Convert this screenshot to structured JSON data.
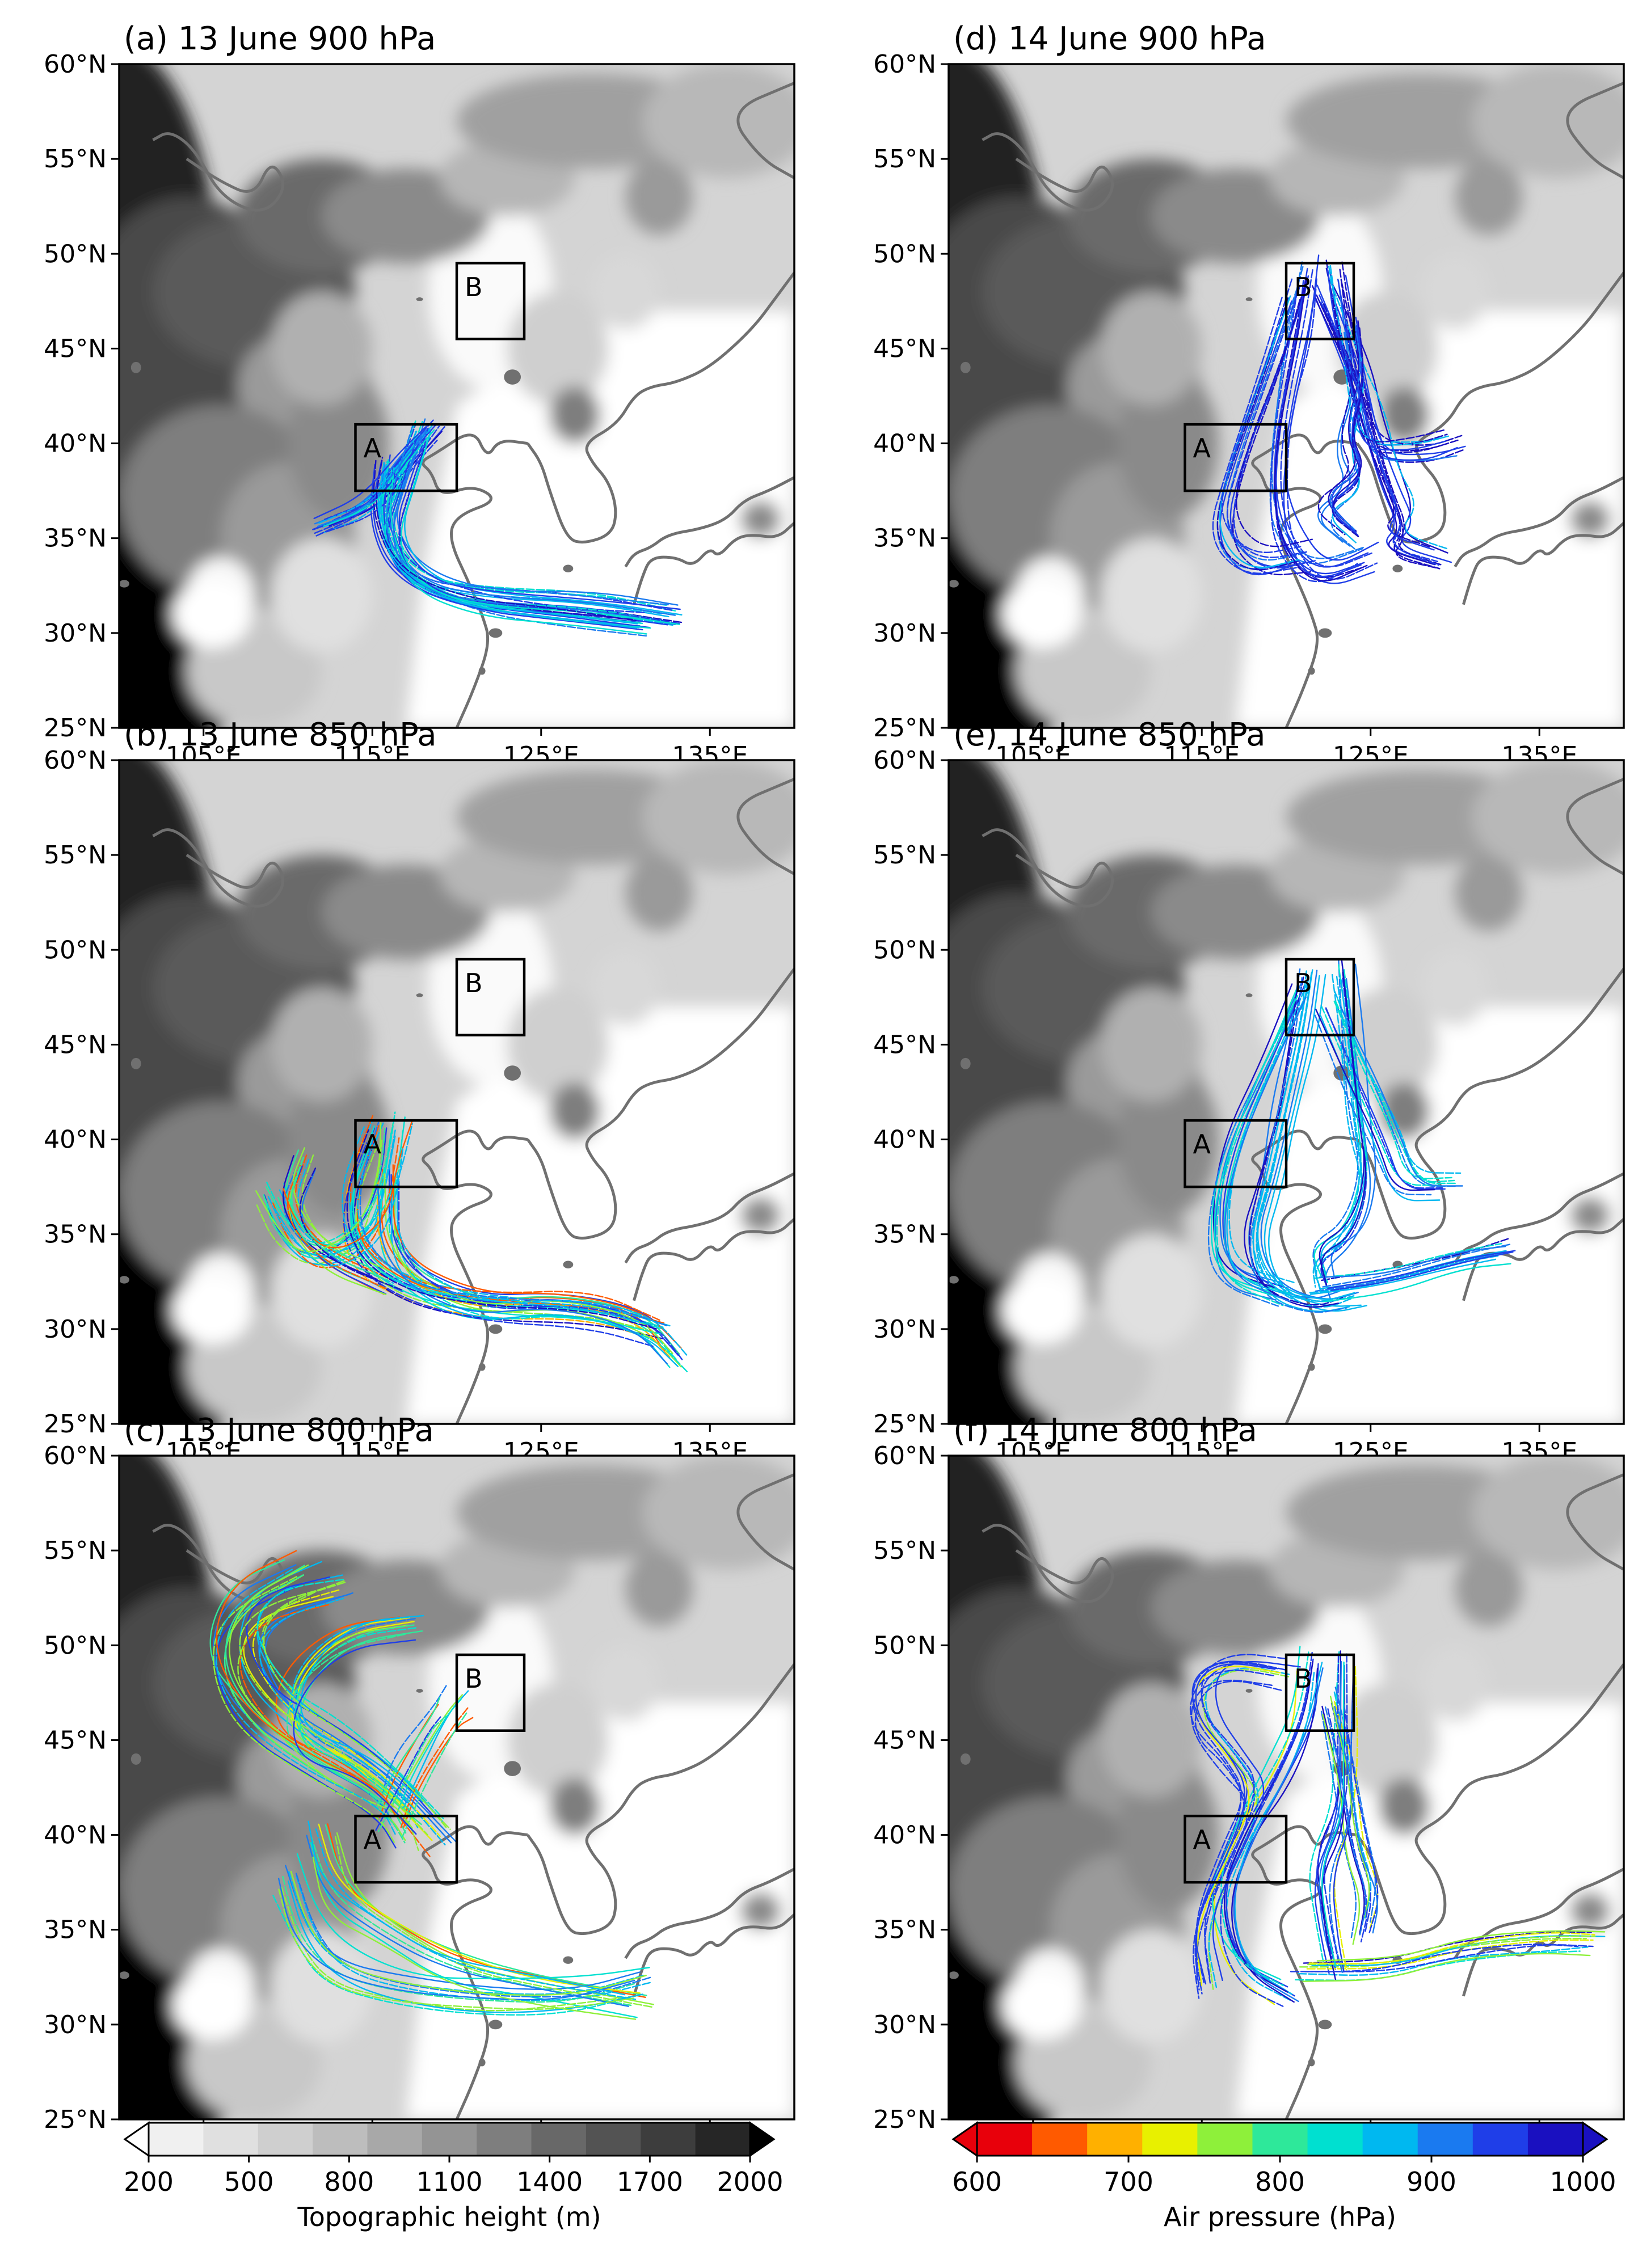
{
  "panels": [
    {
      "id": "a",
      "title": "(a) 13 June 900 hPa",
      "pattern": "13-900"
    },
    {
      "id": "b",
      "title": "(b) 13 June 850 hPa",
      "pattern": "13-850"
    },
    {
      "id": "c",
      "title": "(c) 13 June 800 hPa",
      "pattern": "13-800"
    },
    {
      "id": "d",
      "title": "(d) 14 June 900 hPa",
      "pattern": "14-900"
    },
    {
      "id": "e",
      "title": "(e) 14 June 850 hPa",
      "pattern": "14-850"
    },
    {
      "id": "f",
      "title": "(f) 14 June 800 hPa",
      "pattern": "14-800"
    }
  ],
  "map_extent": {
    "lon": [
      100,
      140
    ],
    "lat": [
      25,
      60
    ]
  },
  "lat_ticks": [
    "25°N",
    "30°N",
    "35°N",
    "40°N",
    "45°N",
    "50°N",
    "55°N",
    "60°N"
  ],
  "lon_ticks": [
    "105°E",
    "115°E",
    "125°E",
    "135°E"
  ],
  "boxes": [
    {
      "label": "A",
      "lon": [
        114,
        120
      ],
      "lat": [
        37.5,
        41
      ]
    },
    {
      "label": "B",
      "lon": [
        120,
        124
      ],
      "lat": [
        45.5,
        49.5
      ]
    }
  ],
  "colorbars": [
    {
      "label": "Topographic height (m)",
      "ticks": [
        "200",
        "500",
        "800",
        "1100",
        "1400",
        "1700",
        "2000"
      ],
      "colors": [
        "#ffffff",
        "#f0f0f0",
        "#e0e0e0",
        "#cfcfcf",
        "#bdbdbd",
        "#a8a8a8",
        "#949494",
        "#7e7e7e",
        "#686868",
        "#535353",
        "#3d3d3d",
        "#262626",
        "#000000"
      ]
    },
    {
      "label": "Air pressure (hPa)",
      "ticks": [
        "600",
        "700",
        "800",
        "900",
        "1000"
      ],
      "colors": [
        "#e8000b",
        "#ff5a00",
        "#ffb000",
        "#e8f000",
        "#8ef03a",
        "#2ee89a",
        "#00e0d0",
        "#00b8f0",
        "#1a7af0",
        "#1f3ee8",
        "#1a10c0"
      ]
    }
  ],
  "colors": {
    "coast": "#707070",
    "frame": "#000000"
  }
}
